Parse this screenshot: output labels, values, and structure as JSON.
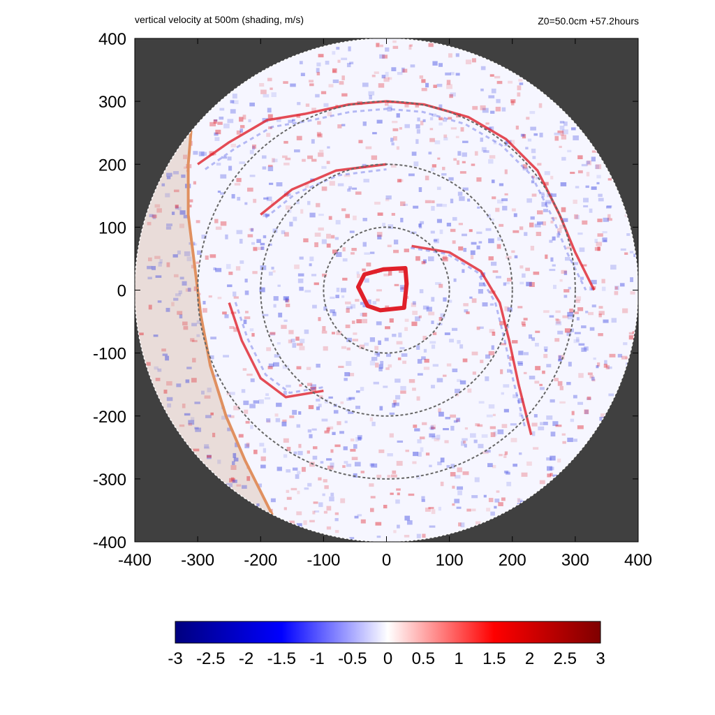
{
  "chart_data": {
    "type": "heatmap",
    "title": "vertical velocity at 500m (shading, m/s)",
    "subtitle": "Z0=50.0cm  +57.2hours",
    "xlabel": "",
    "ylabel": "",
    "xlim": [
      -400,
      400
    ],
    "ylim": [
      -400,
      400
    ],
    "x_ticks": [
      -400,
      -300,
      -200,
      -100,
      0,
      100,
      200,
      300,
      400
    ],
    "y_ticks": [
      -400,
      -300,
      -200,
      -100,
      0,
      100,
      200,
      300,
      400
    ],
    "x_tick_labels": [
      "-400",
      "-300",
      "-200",
      "-100",
      "0",
      "100",
      "200",
      "300",
      "400"
    ],
    "y_tick_labels": [
      "-400",
      "-300",
      "-200",
      "-100",
      "0",
      "100",
      "200",
      "300",
      "400"
    ],
    "domain_radius": 400,
    "range_rings": [
      100,
      200,
      300
    ],
    "colorbar": {
      "min": -3,
      "max": 3,
      "ticks": [
        -3,
        -2.5,
        -2,
        -1.5,
        -1,
        -0.5,
        0,
        0.5,
        1,
        1.5,
        2,
        2.5,
        3
      ],
      "tick_labels": [
        "-3",
        "-2.5",
        "-2",
        "-1.5",
        "-1",
        "-0.5",
        "0",
        "0.5",
        "1",
        "1.5",
        "2",
        "2.5",
        "3"
      ],
      "colors": [
        "#00007f",
        "#0000ff",
        "#ffffff",
        "#ff0000",
        "#7f0000"
      ]
    },
    "features": {
      "eyewall": [
        [
          -45,
          5
        ],
        [
          -35,
          25
        ],
        [
          -5,
          33
        ],
        [
          30,
          35
        ],
        [
          32,
          10
        ],
        [
          28,
          -28
        ],
        [
          -10,
          -32
        ],
        [
          -30,
          -25
        ],
        [
          -40,
          -5
        ]
      ],
      "coast": [
        [
          -300,
          300
        ],
        [
          -310,
          260
        ],
        [
          -315,
          200
        ],
        [
          -315,
          120
        ],
        [
          -305,
          40
        ],
        [
          -295,
          -40
        ],
        [
          -280,
          -120
        ],
        [
          -255,
          -200
        ],
        [
          -225,
          -270
        ],
        [
          -195,
          -330
        ],
        [
          -160,
          -400
        ]
      ],
      "rainbands": [
        [
          [
            -300,
            200
          ],
          [
            -250,
            235
          ],
          [
            -190,
            270
          ],
          [
            -130,
            280
          ],
          [
            -60,
            295
          ],
          [
            0,
            300
          ],
          [
            60,
            295
          ],
          [
            130,
            275
          ],
          [
            190,
            240
          ],
          [
            240,
            190
          ],
          [
            275,
            120
          ],
          [
            300,
            60
          ],
          [
            330,
            0
          ]
        ],
        [
          [
            40,
            70
          ],
          [
            100,
            60
          ],
          [
            150,
            30
          ],
          [
            180,
            -20
          ],
          [
            195,
            -80
          ],
          [
            210,
            -150
          ],
          [
            230,
            -230
          ]
        ],
        [
          [
            -250,
            -20
          ],
          [
            -230,
            -80
          ],
          [
            -200,
            -140
          ],
          [
            -160,
            -170
          ],
          [
            -100,
            -160
          ]
        ],
        [
          [
            -200,
            120
          ],
          [
            -150,
            160
          ],
          [
            -80,
            190
          ],
          [
            0,
            200
          ]
        ]
      ]
    }
  },
  "colors": {
    "outside": "#404040",
    "land": "#e9dcd9",
    "coast": "#e09060",
    "positive": "#e0202a",
    "negative": "#3a44e0",
    "ring": "#666666"
  }
}
